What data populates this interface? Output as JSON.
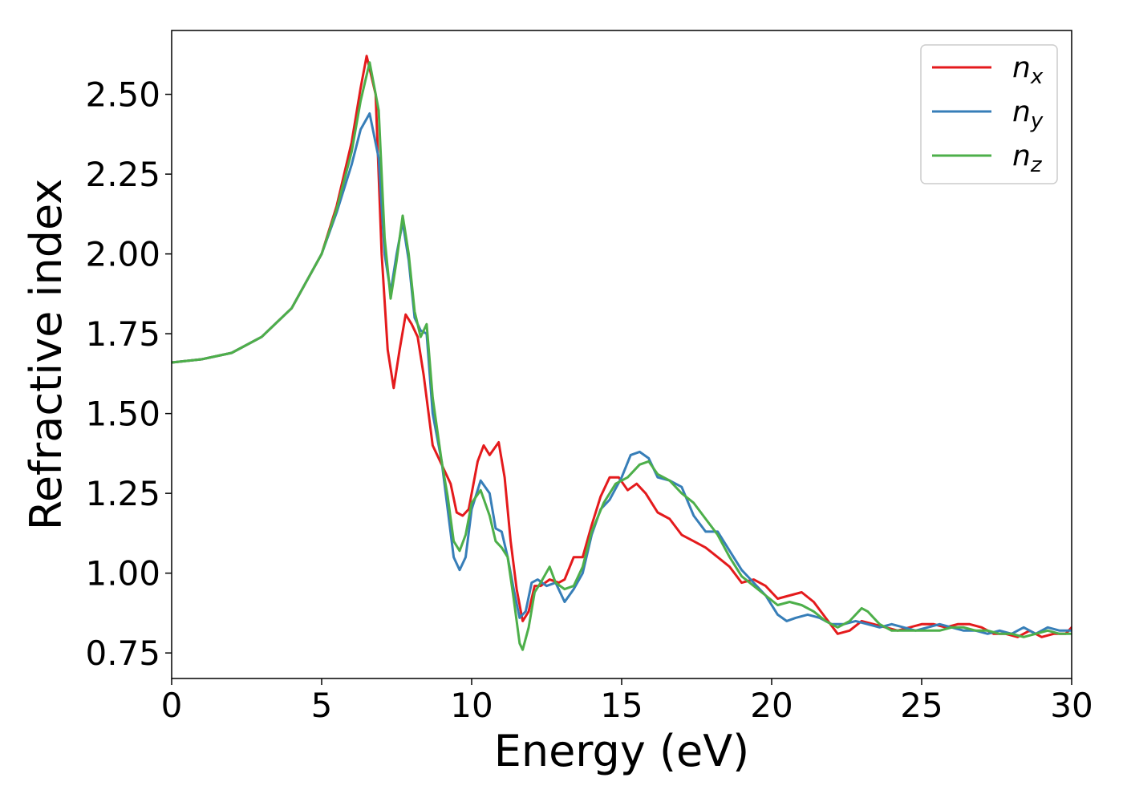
{
  "chart_data": {
    "type": "line",
    "title": "",
    "xlabel": "Energy (eV)",
    "ylabel": "Refractive index",
    "xlim": [
      0,
      30
    ],
    "ylim": [
      0.67,
      2.7
    ],
    "xticks": [
      0,
      5,
      10,
      15,
      20,
      25,
      30
    ],
    "xtick_labels": [
      "0",
      "5",
      "10",
      "15",
      "20",
      "25",
      "30"
    ],
    "yticks": [
      0.75,
      1.0,
      1.25,
      1.5,
      1.75,
      2.0,
      2.25,
      2.5
    ],
    "ytick_labels": [
      "0.75",
      "1.00",
      "1.25",
      "1.50",
      "1.75",
      "2.00",
      "2.25",
      "2.50"
    ],
    "grid": false,
    "legend_position": "top-right",
    "series": [
      {
        "name": "n_x",
        "label_base": "n",
        "label_sub": "x",
        "color": "#e41a1c",
        "points": [
          [
            0,
            1.66
          ],
          [
            1,
            1.67
          ],
          [
            2,
            1.69
          ],
          [
            3,
            1.74
          ],
          [
            4,
            1.83
          ],
          [
            5,
            2.0
          ],
          [
            5.5,
            2.15
          ],
          [
            6,
            2.35
          ],
          [
            6.3,
            2.52
          ],
          [
            6.5,
            2.62
          ],
          [
            6.8,
            2.5
          ],
          [
            7.0,
            2.0
          ],
          [
            7.2,
            1.7
          ],
          [
            7.4,
            1.58
          ],
          [
            7.6,
            1.7
          ],
          [
            7.8,
            1.81
          ],
          [
            8.0,
            1.78
          ],
          [
            8.2,
            1.74
          ],
          [
            8.4,
            1.62
          ],
          [
            8.7,
            1.4
          ],
          [
            9.0,
            1.34
          ],
          [
            9.3,
            1.28
          ],
          [
            9.5,
            1.19
          ],
          [
            9.7,
            1.18
          ],
          [
            9.9,
            1.2
          ],
          [
            10.2,
            1.35
          ],
          [
            10.4,
            1.4
          ],
          [
            10.6,
            1.37
          ],
          [
            10.9,
            1.41
          ],
          [
            11.1,
            1.3
          ],
          [
            11.3,
            1.1
          ],
          [
            11.5,
            0.95
          ],
          [
            11.7,
            0.85
          ],
          [
            11.9,
            0.88
          ],
          [
            12.1,
            0.96
          ],
          [
            12.3,
            0.96
          ],
          [
            12.6,
            0.98
          ],
          [
            12.9,
            0.97
          ],
          [
            13.1,
            0.98
          ],
          [
            13.4,
            1.05
          ],
          [
            13.7,
            1.05
          ],
          [
            14.0,
            1.15
          ],
          [
            14.3,
            1.24
          ],
          [
            14.6,
            1.3
          ],
          [
            14.9,
            1.3
          ],
          [
            15.2,
            1.26
          ],
          [
            15.5,
            1.28
          ],
          [
            15.8,
            1.25
          ],
          [
            16.2,
            1.19
          ],
          [
            16.6,
            1.17
          ],
          [
            17.0,
            1.12
          ],
          [
            17.4,
            1.1
          ],
          [
            17.8,
            1.08
          ],
          [
            18.2,
            1.05
          ],
          [
            18.6,
            1.02
          ],
          [
            19.0,
            0.97
          ],
          [
            19.4,
            0.98
          ],
          [
            19.8,
            0.96
          ],
          [
            20.2,
            0.92
          ],
          [
            20.6,
            0.93
          ],
          [
            21.0,
            0.94
          ],
          [
            21.4,
            0.91
          ],
          [
            21.8,
            0.86
          ],
          [
            22.2,
            0.81
          ],
          [
            22.6,
            0.82
          ],
          [
            23.0,
            0.85
          ],
          [
            23.4,
            0.84
          ],
          [
            23.8,
            0.83
          ],
          [
            24.2,
            0.82
          ],
          [
            24.6,
            0.83
          ],
          [
            25.0,
            0.84
          ],
          [
            25.4,
            0.84
          ],
          [
            25.8,
            0.83
          ],
          [
            26.2,
            0.84
          ],
          [
            26.6,
            0.84
          ],
          [
            27.0,
            0.83
          ],
          [
            27.4,
            0.81
          ],
          [
            27.8,
            0.81
          ],
          [
            28.2,
            0.8
          ],
          [
            28.6,
            0.82
          ],
          [
            29.0,
            0.8
          ],
          [
            29.4,
            0.81
          ],
          [
            29.8,
            0.81
          ],
          [
            30.0,
            0.83
          ]
        ]
      },
      {
        "name": "n_y",
        "label_base": "n",
        "label_sub": "y",
        "color": "#377eb8",
        "points": [
          [
            0,
            1.66
          ],
          [
            1,
            1.67
          ],
          [
            2,
            1.69
          ],
          [
            3,
            1.74
          ],
          [
            4,
            1.83
          ],
          [
            5,
            2.0
          ],
          [
            5.5,
            2.13
          ],
          [
            6,
            2.28
          ],
          [
            6.3,
            2.39
          ],
          [
            6.6,
            2.44
          ],
          [
            6.9,
            2.3
          ],
          [
            7.1,
            2.0
          ],
          [
            7.3,
            1.88
          ],
          [
            7.5,
            2.0
          ],
          [
            7.7,
            2.1
          ],
          [
            7.9,
            1.98
          ],
          [
            8.1,
            1.8
          ],
          [
            8.3,
            1.76
          ],
          [
            8.5,
            1.75
          ],
          [
            8.7,
            1.5
          ],
          [
            9.0,
            1.35
          ],
          [
            9.2,
            1.2
          ],
          [
            9.4,
            1.05
          ],
          [
            9.6,
            1.01
          ],
          [
            9.8,
            1.05
          ],
          [
            10.0,
            1.2
          ],
          [
            10.3,
            1.29
          ],
          [
            10.6,
            1.25
          ],
          [
            10.8,
            1.14
          ],
          [
            11.0,
            1.13
          ],
          [
            11.2,
            1.05
          ],
          [
            11.4,
            0.95
          ],
          [
            11.6,
            0.86
          ],
          [
            11.8,
            0.88
          ],
          [
            12.0,
            0.97
          ],
          [
            12.2,
            0.98
          ],
          [
            12.5,
            0.96
          ],
          [
            12.8,
            0.97
          ],
          [
            13.1,
            0.91
          ],
          [
            13.4,
            0.95
          ],
          [
            13.7,
            1.0
          ],
          [
            14.0,
            1.12
          ],
          [
            14.3,
            1.2
          ],
          [
            14.6,
            1.23
          ],
          [
            15.0,
            1.3
          ],
          [
            15.3,
            1.37
          ],
          [
            15.6,
            1.38
          ],
          [
            15.9,
            1.36
          ],
          [
            16.2,
            1.3
          ],
          [
            16.6,
            1.29
          ],
          [
            17.0,
            1.27
          ],
          [
            17.4,
            1.18
          ],
          [
            17.8,
            1.13
          ],
          [
            18.2,
            1.13
          ],
          [
            18.6,
            1.07
          ],
          [
            19.0,
            1.01
          ],
          [
            19.4,
            0.97
          ],
          [
            19.8,
            0.93
          ],
          [
            20.2,
            0.87
          ],
          [
            20.5,
            0.85
          ],
          [
            20.8,
            0.86
          ],
          [
            21.2,
            0.87
          ],
          [
            21.6,
            0.86
          ],
          [
            22.0,
            0.84
          ],
          [
            22.4,
            0.84
          ],
          [
            22.8,
            0.85
          ],
          [
            23.2,
            0.84
          ],
          [
            23.6,
            0.83
          ],
          [
            24.0,
            0.84
          ],
          [
            24.4,
            0.83
          ],
          [
            24.8,
            0.82
          ],
          [
            25.2,
            0.83
          ],
          [
            25.6,
            0.84
          ],
          [
            26.0,
            0.83
          ],
          [
            26.4,
            0.82
          ],
          [
            26.8,
            0.82
          ],
          [
            27.2,
            0.81
          ],
          [
            27.6,
            0.82
          ],
          [
            28.0,
            0.81
          ],
          [
            28.4,
            0.83
          ],
          [
            28.8,
            0.81
          ],
          [
            29.2,
            0.83
          ],
          [
            29.6,
            0.82
          ],
          [
            30.0,
            0.82
          ]
        ]
      },
      {
        "name": "n_z",
        "label_base": "n",
        "label_sub": "z",
        "color": "#4daf4a",
        "points": [
          [
            0,
            1.66
          ],
          [
            1,
            1.67
          ],
          [
            2,
            1.69
          ],
          [
            3,
            1.74
          ],
          [
            4,
            1.83
          ],
          [
            5,
            2.0
          ],
          [
            5.5,
            2.14
          ],
          [
            6,
            2.32
          ],
          [
            6.3,
            2.48
          ],
          [
            6.6,
            2.6
          ],
          [
            6.9,
            2.45
          ],
          [
            7.1,
            2.05
          ],
          [
            7.3,
            1.86
          ],
          [
            7.5,
            1.98
          ],
          [
            7.7,
            2.12
          ],
          [
            7.9,
            2.0
          ],
          [
            8.1,
            1.82
          ],
          [
            8.3,
            1.74
          ],
          [
            8.5,
            1.78
          ],
          [
            8.7,
            1.55
          ],
          [
            9.0,
            1.35
          ],
          [
            9.2,
            1.24
          ],
          [
            9.4,
            1.1
          ],
          [
            9.6,
            1.07
          ],
          [
            9.8,
            1.12
          ],
          [
            10.0,
            1.22
          ],
          [
            10.3,
            1.26
          ],
          [
            10.6,
            1.18
          ],
          [
            10.8,
            1.1
          ],
          [
            11.0,
            1.08
          ],
          [
            11.2,
            1.05
          ],
          [
            11.4,
            0.92
          ],
          [
            11.6,
            0.78
          ],
          [
            11.7,
            0.76
          ],
          [
            11.9,
            0.83
          ],
          [
            12.1,
            0.94
          ],
          [
            12.3,
            0.97
          ],
          [
            12.6,
            1.02
          ],
          [
            12.8,
            0.97
          ],
          [
            13.1,
            0.95
          ],
          [
            13.4,
            0.96
          ],
          [
            13.7,
            1.02
          ],
          [
            14.0,
            1.13
          ],
          [
            14.4,
            1.22
          ],
          [
            14.8,
            1.28
          ],
          [
            15.2,
            1.3
          ],
          [
            15.6,
            1.34
          ],
          [
            15.9,
            1.35
          ],
          [
            16.2,
            1.31
          ],
          [
            16.6,
            1.29
          ],
          [
            17.0,
            1.25
          ],
          [
            17.4,
            1.22
          ],
          [
            17.8,
            1.17
          ],
          [
            18.2,
            1.12
          ],
          [
            18.6,
            1.05
          ],
          [
            19.0,
            0.99
          ],
          [
            19.4,
            0.96
          ],
          [
            19.8,
            0.93
          ],
          [
            20.2,
            0.9
          ],
          [
            20.6,
            0.91
          ],
          [
            21.0,
            0.9
          ],
          [
            21.4,
            0.88
          ],
          [
            21.8,
            0.85
          ],
          [
            22.2,
            0.83
          ],
          [
            22.6,
            0.85
          ],
          [
            23.0,
            0.89
          ],
          [
            23.2,
            0.88
          ],
          [
            23.6,
            0.84
          ],
          [
            24.0,
            0.82
          ],
          [
            24.4,
            0.82
          ],
          [
            24.8,
            0.82
          ],
          [
            25.2,
            0.82
          ],
          [
            25.6,
            0.82
          ],
          [
            26.0,
            0.83
          ],
          [
            26.4,
            0.83
          ],
          [
            26.8,
            0.82
          ],
          [
            27.2,
            0.82
          ],
          [
            27.6,
            0.81
          ],
          [
            28.0,
            0.81
          ],
          [
            28.4,
            0.8
          ],
          [
            28.8,
            0.81
          ],
          [
            29.2,
            0.82
          ],
          [
            29.6,
            0.81
          ],
          [
            30.0,
            0.81
          ]
        ]
      }
    ]
  }
}
